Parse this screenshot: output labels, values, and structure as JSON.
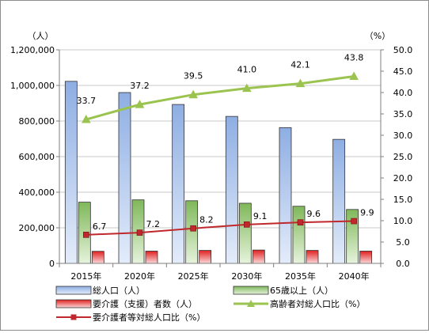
{
  "chart_data": {
    "type": "bar",
    "categories": [
      "2015年",
      "2020年",
      "2025年",
      "2030年",
      "2035年",
      "2040年"
    ],
    "left_unit": "（人）",
    "right_unit": "（%）",
    "ylim_left": [
      0,
      1200000
    ],
    "yticks_left": [
      "0",
      "200,000",
      "400,000",
      "600,000",
      "800,000",
      "1,000,000",
      "1,200,000"
    ],
    "ylim_right": [
      0,
      50
    ],
    "yticks_right": [
      "0.0",
      "5.0",
      "10.0",
      "15.0",
      "20.0",
      "25.0",
      "30.0",
      "35.0",
      "40.0",
      "45.0",
      "50.0"
    ],
    "grid": true,
    "legend_position": "bottom",
    "bar_series": [
      {
        "name": "総人口（人）",
        "color": "#9db9e8",
        "values": [
          1023000,
          960000,
          893000,
          826000,
          763000,
          697000
        ]
      },
      {
        "name": "65歳以上（人）",
        "color": "#8fc46a",
        "values": [
          344000,
          357000,
          352000,
          338000,
          321000,
          303000
        ]
      },
      {
        "name": "要介護（支援）者数（人）",
        "color": "#e03030",
        "values": [
          68000,
          69000,
          73000,
          75000,
          73000,
          69000
        ]
      }
    ],
    "line_series": [
      {
        "name": "高齢者対総人口比（%）",
        "color": "#9bc34f",
        "marker": "triangle",
        "values": [
          33.7,
          37.2,
          39.5,
          41.0,
          42.1,
          43.8
        ],
        "labels": [
          "33.7",
          "37.2",
          "39.5",
          "41.0",
          "42.1",
          "43.8"
        ]
      },
      {
        "name": "要介護者等対総人口比（%）",
        "color": "#c0282d",
        "marker": "square",
        "values": [
          6.7,
          7.2,
          8.2,
          9.1,
          9.6,
          9.9
        ],
        "labels": [
          "6.7",
          "7.2",
          "8.2",
          "9.1",
          "9.6",
          "9.9"
        ]
      }
    ]
  }
}
